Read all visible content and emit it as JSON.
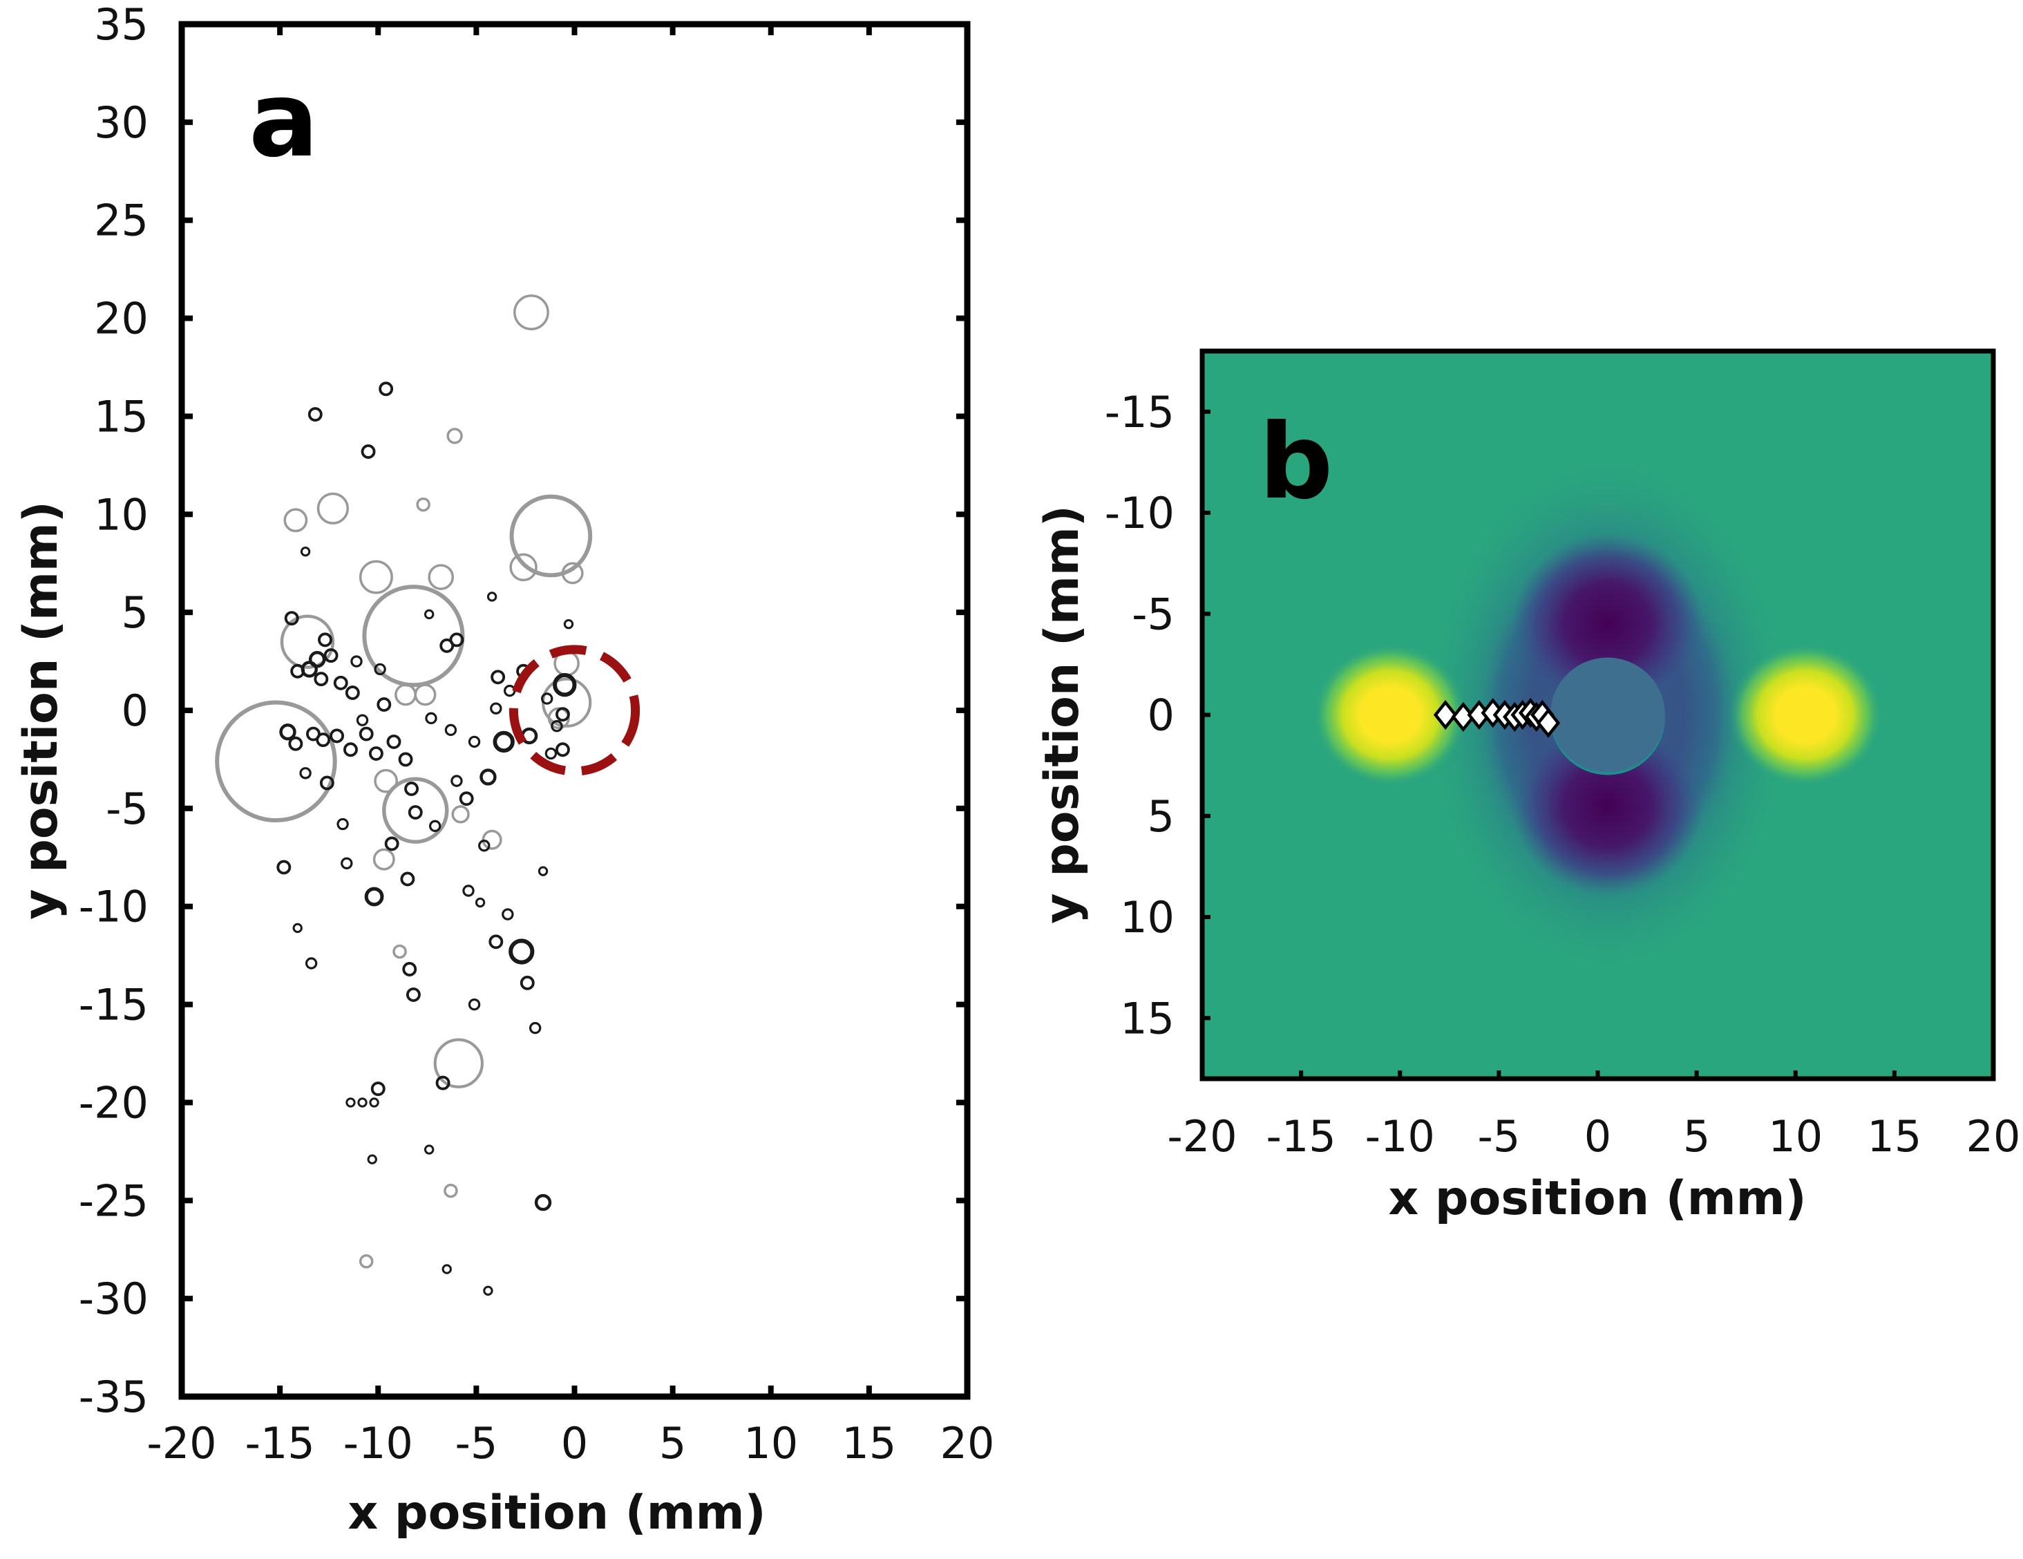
{
  "chart_data": [
    {
      "type": "scatter",
      "panel_label": "a",
      "xlabel": "x position (mm)",
      "ylabel": "y position (mm)",
      "xlim": [
        -20,
        20
      ],
      "ylim": [
        -35,
        35
      ],
      "xticks": [
        "-20",
        "-15",
        "-10",
        "-5",
        "0",
        "5",
        "10",
        "15",
        "20"
      ],
      "yticks": [
        "35",
        "30",
        "25",
        "20",
        "15",
        "10",
        "5",
        "0",
        "-5",
        "-10",
        "-15",
        "-20",
        "-25",
        "-30",
        "-35"
      ],
      "y_axis_direction": "up",
      "colors": {
        "dark_markers": "#1a1a1a",
        "light_markers": "#999999",
        "highlight": "#9b1111"
      },
      "highlight_circle": {
        "x": 0,
        "y": 0,
        "r": 3.1,
        "style": "dashed",
        "color": "#9b1111"
      },
      "bubbles": [
        {
          "x": -2.2,
          "y": 20.3,
          "r": 0.85,
          "c": "light"
        },
        {
          "x": -1.2,
          "y": 8.9,
          "r": 2.0,
          "c": "light"
        },
        {
          "x": -14.2,
          "y": 9.7,
          "r": 0.55,
          "c": "light"
        },
        {
          "x": -12.3,
          "y": 10.3,
          "r": 0.75,
          "c": "light"
        },
        {
          "x": -10.1,
          "y": 6.8,
          "r": 0.8,
          "c": "light"
        },
        {
          "x": -6.8,
          "y": 6.8,
          "r": 0.6,
          "c": "light"
        },
        {
          "x": -2.6,
          "y": 7.3,
          "r": 0.65,
          "c": "light"
        },
        {
          "x": -0.1,
          "y": 7.0,
          "r": 0.5,
          "c": "light"
        },
        {
          "x": -8.2,
          "y": 3.8,
          "r": 2.5,
          "c": "light"
        },
        {
          "x": -13.6,
          "y": 3.5,
          "r": 1.3,
          "c": "light"
        },
        {
          "x": -15.2,
          "y": -2.6,
          "r": 3.0,
          "c": "light"
        },
        {
          "x": -8.1,
          "y": -5.1,
          "r": 1.6,
          "c": "light"
        },
        {
          "x": -0.4,
          "y": 0.4,
          "r": 1.2,
          "c": "light"
        },
        {
          "x": -0.4,
          "y": 2.4,
          "r": 0.6,
          "c": "light"
        },
        {
          "x": -5.9,
          "y": -18.0,
          "r": 1.2,
          "c": "light"
        },
        {
          "x": -9.6,
          "y": -3.6,
          "r": 0.55,
          "c": "light"
        },
        {
          "x": -8.6,
          "y": 0.8,
          "r": 0.5,
          "c": "light"
        },
        {
          "x": -7.6,
          "y": 0.8,
          "r": 0.5,
          "c": "light"
        },
        {
          "x": -9.7,
          "y": -7.6,
          "r": 0.5,
          "c": "light"
        },
        {
          "x": -4.2,
          "y": -6.6,
          "r": 0.45,
          "c": "light"
        },
        {
          "x": -5.8,
          "y": -5.3,
          "r": 0.4,
          "c": "light"
        },
        {
          "x": -0.8,
          "y": -0.4,
          "r": 0.5,
          "c": "light"
        },
        {
          "x": -6.1,
          "y": 14.0,
          "r": 0.35,
          "c": "light"
        },
        {
          "x": -7.7,
          "y": 10.5,
          "r": 0.3,
          "c": "light"
        },
        {
          "x": -10.6,
          "y": -28.1,
          "r": 0.3,
          "c": "light"
        },
        {
          "x": -6.3,
          "y": -24.5,
          "r": 0.3,
          "c": "light"
        },
        {
          "x": -8.9,
          "y": -12.3,
          "r": 0.3,
          "c": "light"
        },
        {
          "x": -2.7,
          "y": -12.3,
          "r": 0.55,
          "c": "dark"
        },
        {
          "x": -9.6,
          "y": 16.4,
          "r": 0.3,
          "c": "dark"
        },
        {
          "x": -13.2,
          "y": 15.1,
          "r": 0.3,
          "c": "dark"
        },
        {
          "x": -10.5,
          "y": 13.2,
          "r": 0.3,
          "c": "dark"
        },
        {
          "x": -1.6,
          "y": -25.1,
          "r": 0.35,
          "c": "dark"
        },
        {
          "x": -6.5,
          "y": -28.5,
          "r": 0.2,
          "c": "dark"
        },
        {
          "x": -4.4,
          "y": -29.6,
          "r": 0.2,
          "c": "dark"
        },
        {
          "x": -10.3,
          "y": -22.9,
          "r": 0.2,
          "c": "dark"
        },
        {
          "x": -7.4,
          "y": -22.4,
          "r": 0.2,
          "c": "dark"
        },
        {
          "x": -10.0,
          "y": -19.3,
          "r": 0.3,
          "c": "dark"
        },
        {
          "x": -6.7,
          "y": -19.0,
          "r": 0.3,
          "c": "dark"
        },
        {
          "x": -10.8,
          "y": -20.0,
          "r": 0.2,
          "c": "dark"
        },
        {
          "x": -11.4,
          "y": -20.0,
          "r": 0.2,
          "c": "dark"
        },
        {
          "x": -10.2,
          "y": -20.0,
          "r": 0.2,
          "c": "dark"
        },
        {
          "x": -8.4,
          "y": -13.2,
          "r": 0.3,
          "c": "dark"
        },
        {
          "x": -8.2,
          "y": -14.5,
          "r": 0.3,
          "c": "dark"
        },
        {
          "x": -5.1,
          "y": -15.0,
          "r": 0.25,
          "c": "dark"
        },
        {
          "x": -2.4,
          "y": -13.9,
          "r": 0.3,
          "c": "dark"
        },
        {
          "x": -2.0,
          "y": -16.2,
          "r": 0.25,
          "c": "dark"
        },
        {
          "x": -4.0,
          "y": -11.8,
          "r": 0.3,
          "c": "dark"
        },
        {
          "x": -13.4,
          "y": -12.9,
          "r": 0.25,
          "c": "dark"
        },
        {
          "x": -14.1,
          "y": -11.1,
          "r": 0.2,
          "c": "dark"
        },
        {
          "x": -10.2,
          "y": -9.5,
          "r": 0.4,
          "c": "dark"
        },
        {
          "x": -14.8,
          "y": -8.0,
          "r": 0.3,
          "c": "dark"
        },
        {
          "x": -8.5,
          "y": -8.6,
          "r": 0.3,
          "c": "dark"
        },
        {
          "x": -11.6,
          "y": -7.8,
          "r": 0.25,
          "c": "dark"
        },
        {
          "x": -3.4,
          "y": -10.4,
          "r": 0.25,
          "c": "dark"
        },
        {
          "x": -1.6,
          "y": -8.2,
          "r": 0.2,
          "c": "dark"
        },
        {
          "x": -4.4,
          "y": -3.4,
          "r": 0.35,
          "c": "dark"
        },
        {
          "x": -5.5,
          "y": -4.5,
          "r": 0.3,
          "c": "dark"
        },
        {
          "x": -3.6,
          "y": -1.6,
          "r": 0.45,
          "c": "dark"
        },
        {
          "x": -2.3,
          "y": -1.3,
          "r": 0.35,
          "c": "dark"
        },
        {
          "x": -0.6,
          "y": -2.0,
          "r": 0.3,
          "c": "dark"
        },
        {
          "x": -1.2,
          "y": -2.2,
          "r": 0.25,
          "c": "dark"
        },
        {
          "x": -0.5,
          "y": 1.3,
          "r": 0.5,
          "c": "dark"
        },
        {
          "x": -2.6,
          "y": 2.0,
          "r": 0.3,
          "c": "dark"
        },
        {
          "x": -3.9,
          "y": 1.7,
          "r": 0.3,
          "c": "dark"
        },
        {
          "x": -3.3,
          "y": 1.0,
          "r": 0.25,
          "c": "dark"
        },
        {
          "x": -4.0,
          "y": 0.1,
          "r": 0.25,
          "c": "dark"
        },
        {
          "x": -4.2,
          "y": 5.8,
          "r": 0.2,
          "c": "dark"
        },
        {
          "x": -0.3,
          "y": 4.4,
          "r": 0.2,
          "c": "dark"
        },
        {
          "x": -7.4,
          "y": 4.9,
          "r": 0.2,
          "c": "dark"
        },
        {
          "x": -13.1,
          "y": 2.6,
          "r": 0.35,
          "c": "dark"
        },
        {
          "x": -13.5,
          "y": 2.1,
          "r": 0.35,
          "c": "dark"
        },
        {
          "x": -12.9,
          "y": 1.6,
          "r": 0.3,
          "c": "dark"
        },
        {
          "x": -12.4,
          "y": 2.8,
          "r": 0.3,
          "c": "dark"
        },
        {
          "x": -11.9,
          "y": 1.4,
          "r": 0.3,
          "c": "dark"
        },
        {
          "x": -11.3,
          "y": 0.9,
          "r": 0.3,
          "c": "dark"
        },
        {
          "x": -14.4,
          "y": 4.7,
          "r": 0.3,
          "c": "dark"
        },
        {
          "x": -14.1,
          "y": 2.0,
          "r": 0.3,
          "c": "dark"
        },
        {
          "x": -12.7,
          "y": 3.6,
          "r": 0.3,
          "c": "dark"
        },
        {
          "x": -14.6,
          "y": -1.1,
          "r": 0.35,
          "c": "dark"
        },
        {
          "x": -14.2,
          "y": -1.7,
          "r": 0.3,
          "c": "dark"
        },
        {
          "x": -13.3,
          "y": -1.2,
          "r": 0.3,
          "c": "dark"
        },
        {
          "x": -12.8,
          "y": -1.5,
          "r": 0.3,
          "c": "dark"
        },
        {
          "x": -12.1,
          "y": -1.3,
          "r": 0.3,
          "c": "dark"
        },
        {
          "x": -11.4,
          "y": -2.0,
          "r": 0.3,
          "c": "dark"
        },
        {
          "x": -10.6,
          "y": -1.2,
          "r": 0.3,
          "c": "dark"
        },
        {
          "x": -10.1,
          "y": -2.2,
          "r": 0.3,
          "c": "dark"
        },
        {
          "x": -9.2,
          "y": -1.6,
          "r": 0.3,
          "c": "dark"
        },
        {
          "x": -8.6,
          "y": -2.5,
          "r": 0.3,
          "c": "dark"
        },
        {
          "x": -9.7,
          "y": 0.3,
          "r": 0.3,
          "c": "dark"
        },
        {
          "x": -10.8,
          "y": -0.5,
          "r": 0.25,
          "c": "dark"
        },
        {
          "x": -7.3,
          "y": -0.4,
          "r": 0.25,
          "c": "dark"
        },
        {
          "x": -6.3,
          "y": -1.0,
          "r": 0.25,
          "c": "dark"
        },
        {
          "x": -12.6,
          "y": -3.7,
          "r": 0.3,
          "c": "dark"
        },
        {
          "x": -13.7,
          "y": -3.2,
          "r": 0.25,
          "c": "dark"
        },
        {
          "x": -11.8,
          "y": -5.8,
          "r": 0.25,
          "c": "dark"
        },
        {
          "x": -9.3,
          "y": -6.8,
          "r": 0.3,
          "c": "dark"
        },
        {
          "x": -8.3,
          "y": -4.0,
          "r": 0.3,
          "c": "dark"
        },
        {
          "x": -8.1,
          "y": -5.2,
          "r": 0.3,
          "c": "dark"
        },
        {
          "x": -7.1,
          "y": -5.9,
          "r": 0.25,
          "c": "dark"
        },
        {
          "x": -6.0,
          "y": -3.6,
          "r": 0.25,
          "c": "dark"
        },
        {
          "x": -5.1,
          "y": -1.6,
          "r": 0.25,
          "c": "dark"
        },
        {
          "x": -6.5,
          "y": 3.3,
          "r": 0.3,
          "c": "dark"
        },
        {
          "x": -6.0,
          "y": 3.6,
          "r": 0.3,
          "c": "dark"
        },
        {
          "x": -9.9,
          "y": 2.1,
          "r": 0.25,
          "c": "dark"
        },
        {
          "x": -11.1,
          "y": 2.5,
          "r": 0.25,
          "c": "dark"
        },
        {
          "x": -13.7,
          "y": 8.1,
          "r": 0.2,
          "c": "dark"
        },
        {
          "x": -5.4,
          "y": -9.2,
          "r": 0.25,
          "c": "dark"
        },
        {
          "x": -4.8,
          "y": -9.8,
          "r": 0.2,
          "c": "dark"
        },
        {
          "x": -0.6,
          "y": -0.2,
          "r": 0.3,
          "c": "dark"
        },
        {
          "x": -0.9,
          "y": -0.8,
          "r": 0.25,
          "c": "dark"
        },
        {
          "x": -1.4,
          "y": 0.6,
          "r": 0.25,
          "c": "dark"
        },
        {
          "x": -4.6,
          "y": -6.9,
          "r": 0.25,
          "c": "dark"
        }
      ]
    },
    {
      "type": "heatmap",
      "panel_label": "b",
      "xlabel": "x position (mm)",
      "ylabel": "y position (mm)",
      "xlim": [
        -20,
        20
      ],
      "ylim": [
        -18,
        18
      ],
      "xticks": [
        "-20",
        "-15",
        "-10",
        "-5",
        "0",
        "5",
        "10",
        "15",
        "20"
      ],
      "yticks": [
        "-15",
        "-10",
        "-5",
        "0",
        "5",
        "10",
        "15"
      ],
      "y_axis_direction": "down",
      "colormap": [
        "#440154",
        "#3b528b",
        "#21908d",
        "#5dc963",
        "#fde725"
      ],
      "background_color": "#2aa67e",
      "hotspots": [
        {
          "x": -10.5,
          "y": 0,
          "intensity": "high"
        },
        {
          "x": 10.5,
          "y": 0,
          "intensity": "high"
        }
      ],
      "central_disk": {
        "x": 0.5,
        "y": 0,
        "r": 2.9,
        "color": "#3e6f8f"
      },
      "low_lobes": [
        {
          "x": 0.5,
          "y": -4.5,
          "color": "#440154"
        },
        {
          "x": 0.5,
          "y": 4.5,
          "color": "#440154"
        }
      ],
      "marker_series": {
        "marker": "diamond",
        "x": [
          -7.7,
          -6.8,
          -6.0,
          -5.3,
          -4.7,
          -4.2,
          -3.8,
          -3.4,
          -3.1,
          -2.8,
          -2.5
        ],
        "y": [
          0.0,
          0.1,
          0.0,
          -0.1,
          0.0,
          0.1,
          0.0,
          -0.1,
          0.1,
          0.0,
          0.4
        ]
      }
    }
  ]
}
